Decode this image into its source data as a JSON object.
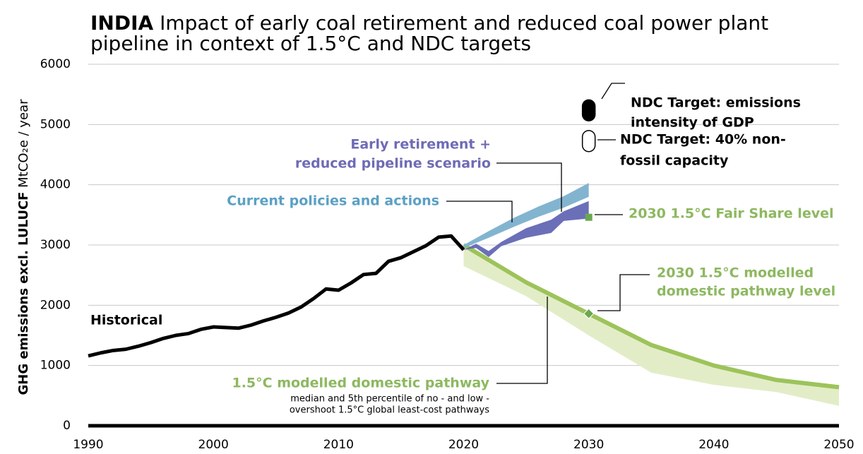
{
  "chart_data": {
    "type": "line",
    "title_bold": "INDIA",
    "title_lines": [
      "Impact of  early coal retirement and reduced coal power plant",
      "pipeline in context of 1.5°C and NDC targets"
    ],
    "y_label_bold": "GHG emissions excl. LULUCF",
    "y_label_unit": "MtCO₂e / year",
    "xlim": [
      1990,
      2050
    ],
    "xticks": [
      1990,
      2000,
      2010,
      2020,
      2030,
      2040,
      2050
    ],
    "ylim": [
      0,
      6000
    ],
    "yticks": [
      0,
      1000,
      2000,
      3000,
      4000,
      5000,
      6000
    ],
    "grid": true,
    "historical": {
      "name": "Historical",
      "color": "#000000",
      "x": [
        1990,
        1991,
        1992,
        1993,
        1994,
        1995,
        1996,
        1997,
        1998,
        1999,
        2000,
        2001,
        2002,
        2003,
        2004,
        2005,
        2006,
        2007,
        2008,
        2009,
        2010,
        2011,
        2012,
        2013,
        2014,
        2015,
        2016,
        2017,
        2018,
        2019,
        2020
      ],
      "values": [
        1160,
        1210,
        1250,
        1270,
        1320,
        1380,
        1450,
        1500,
        1530,
        1600,
        1640,
        1630,
        1620,
        1670,
        1740,
        1800,
        1870,
        1970,
        2110,
        2270,
        2250,
        2370,
        2510,
        2530,
        2730,
        2790,
        2890,
        2990,
        3130,
        3150,
        2920
      ]
    },
    "current_policies": {
      "name": "Current policies and actions",
      "color": "#82b4d0",
      "label_color": "#5ba0c4",
      "x": [
        2020,
        2022,
        2024,
        2026,
        2028,
        2030
      ],
      "upper": [
        3000,
        3230,
        3450,
        3640,
        3810,
        4030
      ],
      "lower": [
        2950,
        3120,
        3300,
        3470,
        3620,
        3800
      ]
    },
    "early_retirement": {
      "name_lines": [
        "Early retirement +",
        "reduced pipeline scenario"
      ],
      "color": "#6b6fb8",
      "label_color": "#6e6bb5",
      "x": [
        2020,
        2021,
        2022,
        2023,
        2025,
        2027,
        2028,
        2030
      ],
      "upper": [
        2920,
        3020,
        2900,
        3050,
        3280,
        3420,
        3560,
        3730
      ],
      "lower": [
        2920,
        2950,
        2800,
        2980,
        3120,
        3200,
        3400,
        3440
      ]
    },
    "pathway": {
      "name": "1.5°C modelled domestic pathway",
      "note_lines": [
        "median and 5th percentile of no - and low -",
        "overshoot 1.5°C global least-cost pathways"
      ],
      "color": "#9dc35a",
      "band_color": "#e2edc8",
      "label_color": "#8db860",
      "x": [
        2020,
        2025,
        2030,
        2035,
        2040,
        2045,
        2050
      ],
      "median": [
        3000,
        2380,
        1860,
        1340,
        1000,
        760,
        640
      ],
      "lower": [
        2650,
        2150,
        1500,
        880,
        680,
        560,
        330
      ]
    },
    "fair_share": {
      "name": "2030 1.5°C Fair Share level",
      "x": 2030,
      "value": 3460,
      "color": "#6aa84f"
    },
    "modelled_level": {
      "name_lines": [
        "2030 1.5°C modelled",
        "domestic pathway level"
      ],
      "x": 2030,
      "value": 1860,
      "color": "#6aa84f"
    },
    "ndc_intensity": {
      "name_lines": [
        "NDC Target: emissions",
        "intensity of GDP"
      ],
      "x": 2030,
      "low": 5060,
      "high": 5410
    },
    "ndc_nonfossil": {
      "name_lines": [
        "NDC Target: 40% non-",
        "fossil capacity"
      ],
      "x": 2030,
      "low": 4550,
      "high": 4900
    }
  }
}
